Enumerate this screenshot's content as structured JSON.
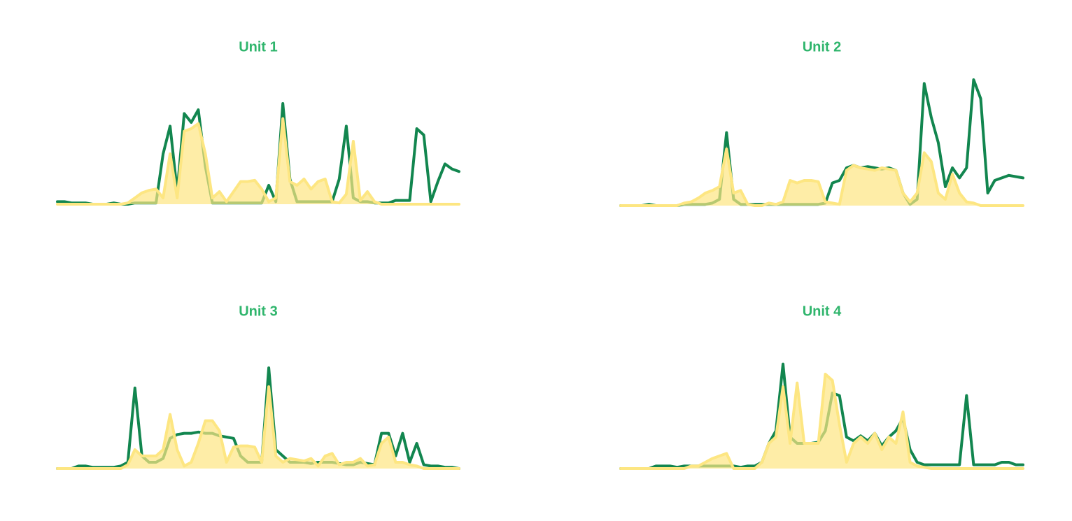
{
  "chart_data": [
    {
      "type": "line",
      "title": "Unit 1",
      "ylim": [
        0,
        100
      ],
      "series": [
        {
          "color": "#12864f",
          "values": [
            2,
            2,
            1,
            1,
            1,
            0,
            0,
            0,
            1,
            0,
            0,
            1,
            1,
            1,
            1,
            40,
            62,
            10,
            72,
            65,
            75,
            30,
            1,
            1,
            1,
            1,
            1,
            1,
            1,
            1,
            15,
            2,
            80,
            20,
            2,
            2,
            2,
            2,
            2,
            2,
            20,
            62,
            5,
            2,
            2,
            1,
            1,
            1,
            3,
            3,
            3,
            60,
            55,
            2,
            18,
            32,
            28,
            26
          ]
        },
        {
          "color": "#fde682",
          "fill": true,
          "values": [
            0,
            0,
            0,
            0,
            0,
            0,
            0,
            0,
            0,
            0,
            1,
            5,
            9,
            11,
            12,
            5,
            40,
            5,
            58,
            60,
            64,
            40,
            5,
            10,
            2,
            10,
            18,
            18,
            19,
            12,
            2,
            5,
            68,
            18,
            15,
            20,
            12,
            18,
            20,
            2,
            1,
            8,
            50,
            3,
            10,
            2,
            0,
            0,
            0,
            0,
            0,
            0,
            0,
            0,
            0,
            0,
            0,
            0
          ]
        }
      ]
    },
    {
      "type": "line",
      "title": "Unit 2",
      "ylim": [
        0,
        100
      ],
      "series": [
        {
          "color": "#12864f",
          "values": [
            0,
            0,
            0,
            0,
            1,
            0,
            0,
            0,
            0,
            1,
            1,
            1,
            1,
            2,
            5,
            58,
            5,
            1,
            1,
            1,
            1,
            1,
            1,
            1,
            1,
            1,
            1,
            1,
            1,
            2,
            18,
            20,
            30,
            32,
            30,
            31,
            30,
            29,
            30,
            28,
            10,
            1,
            5,
            97,
            70,
            50,
            15,
            30,
            22,
            30,
            100,
            85,
            10,
            20,
            22,
            24,
            23,
            22
          ]
        },
        {
          "color": "#fde682",
          "fill": true,
          "values": [
            0,
            0,
            0,
            0,
            0,
            0,
            0,
            0,
            0,
            2,
            3,
            6,
            10,
            12,
            15,
            45,
            10,
            12,
            1,
            0,
            0,
            2,
            1,
            3,
            20,
            18,
            20,
            20,
            19,
            3,
            2,
            1,
            28,
            32,
            30,
            29,
            28,
            30,
            29,
            28,
            10,
            3,
            10,
            42,
            35,
            10,
            5,
            25,
            10,
            3,
            2,
            0,
            0,
            0,
            0,
            0,
            0,
            0
          ]
        }
      ]
    },
    {
      "type": "line",
      "title": "Unit 3",
      "ylim": [
        0,
        100
      ],
      "series": [
        {
          "color": "#12864f",
          "values": [
            0,
            0,
            0,
            2,
            2,
            1,
            1,
            1,
            1,
            2,
            5,
            64,
            10,
            5,
            5,
            8,
            24,
            27,
            28,
            28,
            29,
            28,
            28,
            26,
            25,
            24,
            10,
            5,
            5,
            5,
            80,
            15,
            10,
            5,
            5,
            5,
            4,
            5,
            5,
            5,
            4,
            3,
            3,
            5,
            4,
            3,
            28,
            28,
            10,
            28,
            5,
            20,
            3,
            2,
            2,
            1,
            1,
            0
          ]
        },
        {
          "color": "#fde682",
          "fill": true,
          "values": [
            0,
            0,
            0,
            0,
            0,
            0,
            0,
            0,
            0,
            0,
            3,
            15,
            10,
            10,
            10,
            15,
            43,
            15,
            2,
            5,
            20,
            38,
            38,
            30,
            5,
            17,
            18,
            18,
            17,
            5,
            65,
            10,
            5,
            8,
            7,
            6,
            8,
            2,
            10,
            12,
            3,
            5,
            5,
            8,
            2,
            3,
            20,
            25,
            5,
            5,
            3,
            2,
            0,
            0,
            0,
            0,
            0,
            0
          ]
        }
      ]
    },
    {
      "type": "line",
      "title": "Unit 4",
      "ylim": [
        0,
        100
      ],
      "series": [
        {
          "color": "#12864f",
          "values": [
            0,
            0,
            0,
            0,
            0,
            2,
            2,
            2,
            1,
            2,
            2,
            2,
            2,
            2,
            2,
            2,
            2,
            1,
            2,
            2,
            5,
            20,
            30,
            83,
            25,
            20,
            20,
            20,
            21,
            30,
            60,
            58,
            25,
            22,
            26,
            22,
            28,
            18,
            25,
            30,
            40,
            15,
            5,
            3,
            3,
            3,
            3,
            3,
            3,
            58,
            3,
            3,
            3,
            3,
            5,
            5,
            3,
            3
          ]
        },
        {
          "color": "#fde682",
          "fill": true,
          "values": [
            0,
            0,
            0,
            0,
            0,
            0,
            0,
            0,
            0,
            0,
            2,
            2,
            5,
            8,
            10,
            12,
            0,
            0,
            0,
            0,
            5,
            20,
            25,
            65,
            20,
            68,
            20,
            20,
            20,
            75,
            70,
            35,
            5,
            20,
            25,
            20,
            28,
            15,
            25,
            20,
            45,
            5,
            2,
            1,
            0,
            0,
            0,
            0,
            0,
            0,
            0,
            0,
            0,
            0,
            0,
            0,
            0,
            0
          ]
        }
      ]
    }
  ]
}
